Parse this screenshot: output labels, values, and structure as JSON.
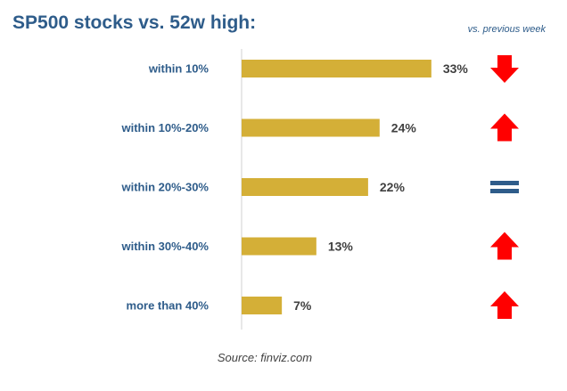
{
  "chart_data": {
    "type": "bar",
    "orientation": "horizontal",
    "title": "SP500 stocks vs. 52w high:",
    "categories": [
      "within 10%",
      "within 10%-20%",
      "within 20%-30%",
      "within 30%-40%",
      "more than 40%"
    ],
    "values": [
      33,
      24,
      22,
      13,
      7
    ],
    "value_labels": [
      "33%",
      "24%",
      "22%",
      "13%",
      "7%"
    ],
    "value_unit": "%",
    "xlim": [
      0,
      40
    ],
    "grid": false,
    "bar_color": "#d4af37",
    "trend_header": "vs. previous week",
    "trends": [
      "down",
      "up",
      "equal",
      "up",
      "up"
    ],
    "trend_colors": {
      "up": "#ff0000",
      "down": "#ff0000",
      "equal": "#2e5c8a"
    },
    "source": "Source: finviz.com"
  }
}
